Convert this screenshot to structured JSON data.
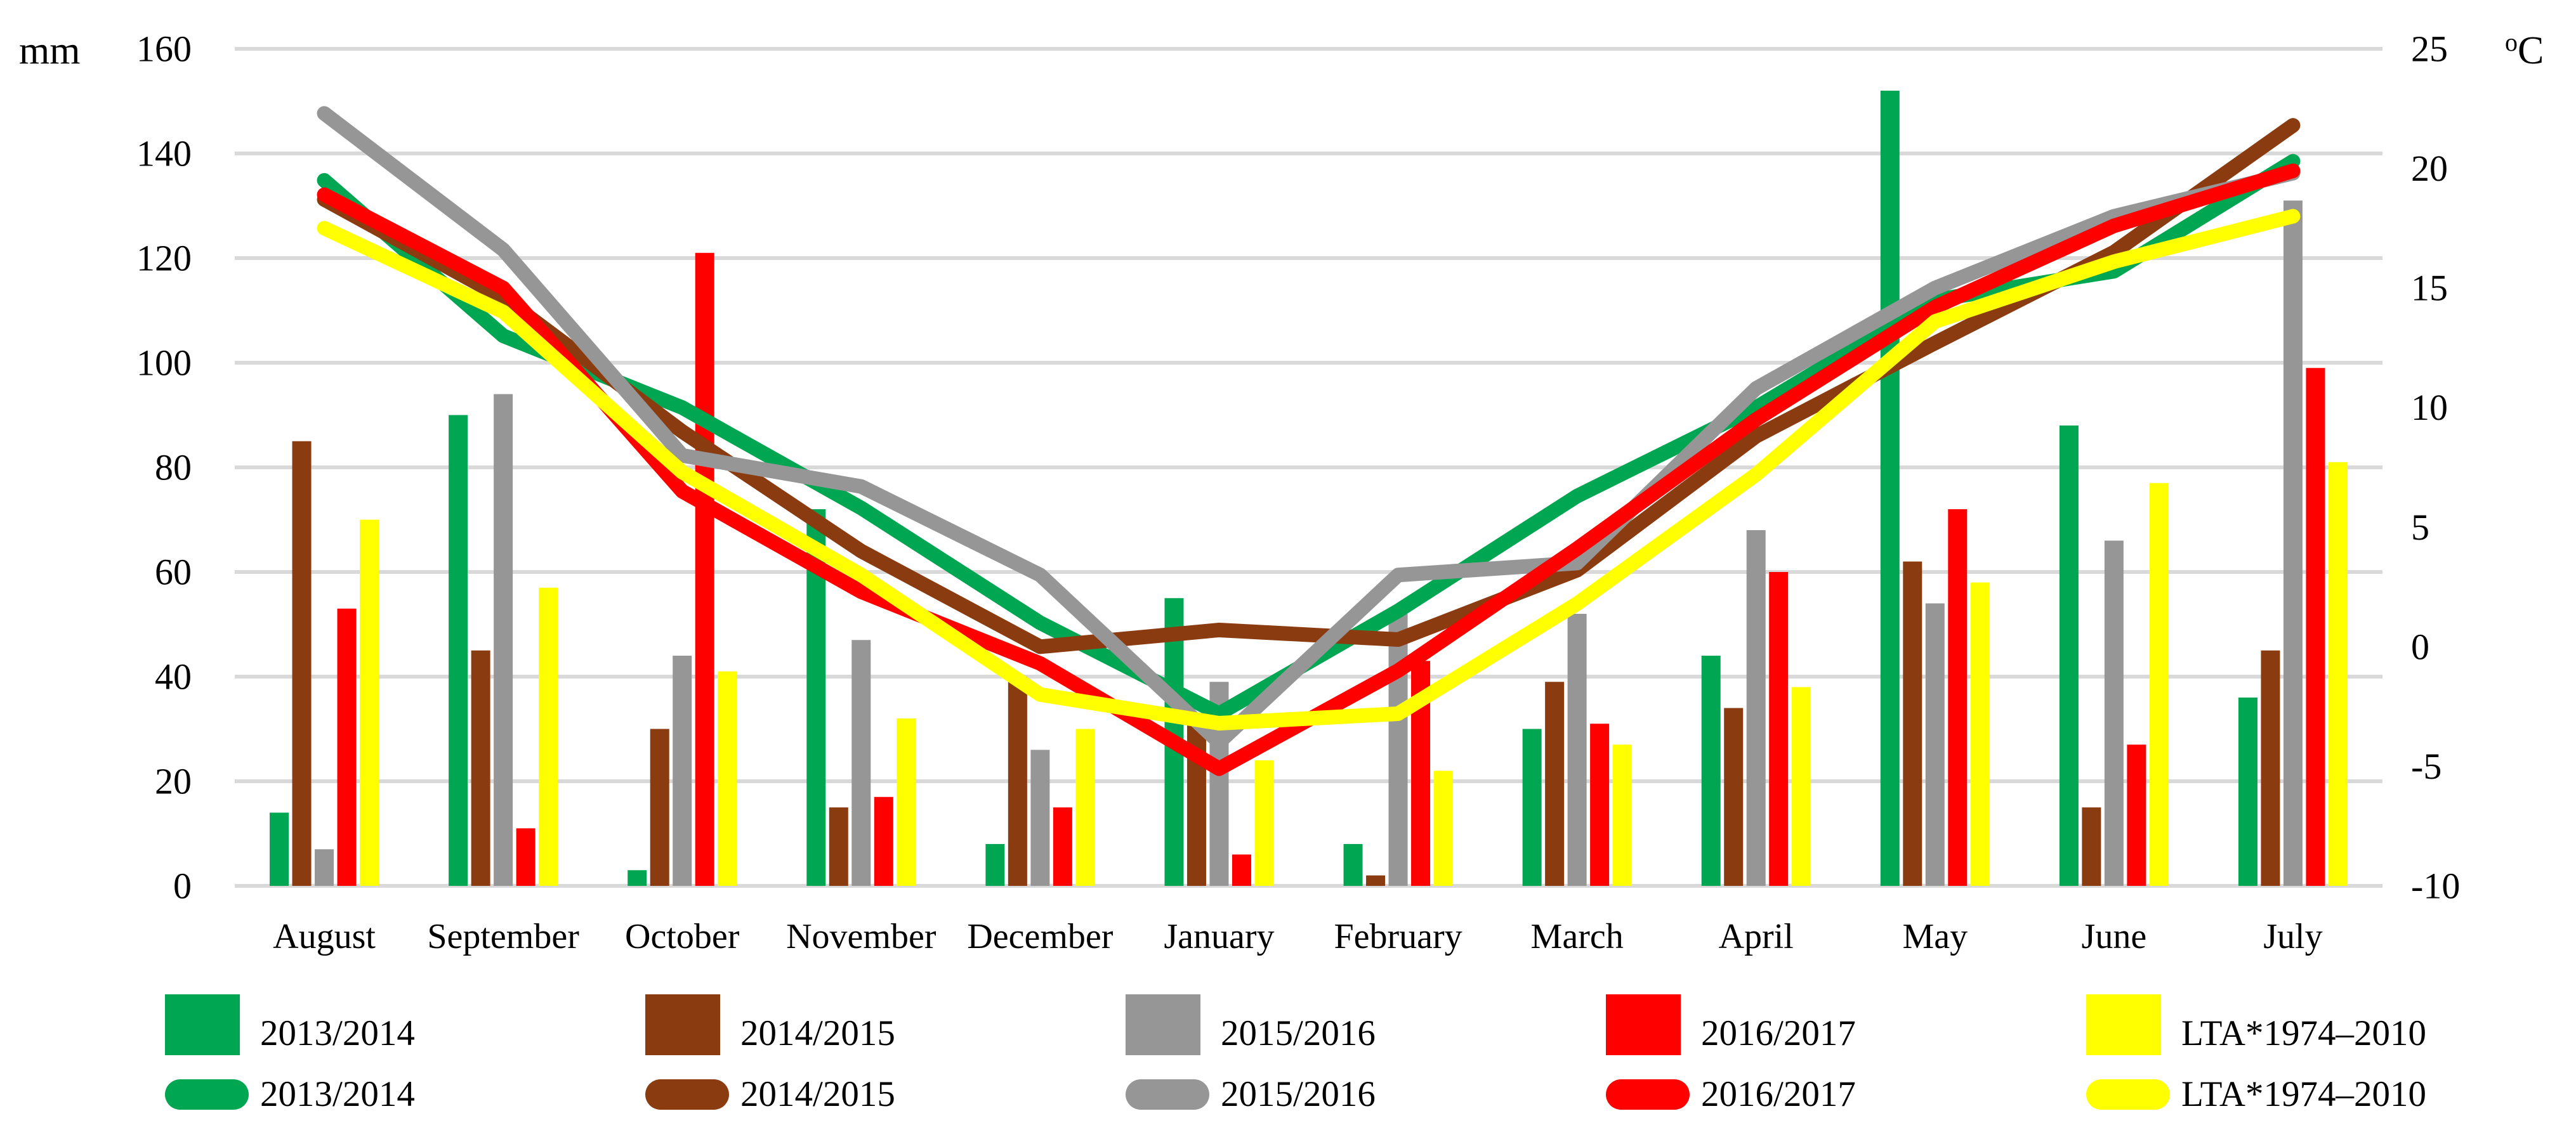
{
  "chart_data": {
    "type": "bar+line",
    "title": "",
    "categories": [
      "August",
      "September",
      "October",
      "November",
      "December",
      "January",
      "February",
      "March",
      "April",
      "May",
      "June",
      "July"
    ],
    "left_axis": {
      "label": "mm",
      "min": 0,
      "max": 160,
      "step": 20,
      "ticks": [
        "0",
        "20",
        "40",
        "60",
        "80",
        "100",
        "120",
        "140",
        "160"
      ]
    },
    "right_axis": {
      "label_sup": "o",
      "label_main": "C",
      "min": -10,
      "max": 25,
      "step": 5,
      "ticks": [
        "25",
        "20",
        "15",
        "10",
        "5",
        "0",
        "-5",
        "-10"
      ]
    },
    "grid": "horizontal",
    "legend_position": "bottom",
    "colors": {
      "green": "#00A651",
      "brown": "#8A3B10",
      "gray": "#969696",
      "red": "#FF0000",
      "yellow": "#FFFF00",
      "gridline": "#D9D9D9",
      "text": "#000000"
    },
    "bar_series": [
      {
        "name": "2013/2014",
        "color_key": "green",
        "values": [
          14,
          90,
          3,
          72,
          8,
          55,
          8,
          30,
          44,
          152,
          88,
          36
        ]
      },
      {
        "name": "2014/2015",
        "color_key": "brown",
        "values": [
          85,
          45,
          30,
          15,
          40,
          32,
          2,
          39,
          34,
          62,
          15,
          45
        ]
      },
      {
        "name": "2015/2016",
        "color_key": "gray",
        "values": [
          7,
          94,
          44,
          47,
          26,
          39,
          52,
          52,
          68,
          54,
          66,
          131
        ]
      },
      {
        "name": "2016/2017",
        "color_key": "red",
        "values": [
          53,
          11,
          121,
          17,
          15,
          6,
          43,
          31,
          60,
          72,
          27,
          99
        ]
      },
      {
        "name": "LTA*1974–2010",
        "color_key": "yellow",
        "values": [
          70,
          57,
          41,
          32,
          30,
          24,
          22,
          27,
          38,
          58,
          77,
          81
        ]
      }
    ],
    "line_series": [
      {
        "name": "2013/2014",
        "color_key": "green",
        "values": [
          19.5,
          13.0,
          10.0,
          5.8,
          1.0,
          -2.8,
          1.5,
          6.3,
          10.0,
          14.5,
          15.7,
          20.3
        ]
      },
      {
        "name": "2014/2015",
        "color_key": "brown",
        "values": [
          18.7,
          14.6,
          9.0,
          4.0,
          0.0,
          0.7,
          0.3,
          3.2,
          8.8,
          12.7,
          16.5,
          21.8
        ]
      },
      {
        "name": "2015/2016",
        "color_key": "gray",
        "values": [
          22.3,
          16.6,
          8.0,
          6.7,
          3.0,
          -4.0,
          3.0,
          3.5,
          10.8,
          15.0,
          18.0,
          19.8
        ]
      },
      {
        "name": "2016/2017",
        "color_key": "red",
        "values": [
          18.9,
          15.0,
          6.5,
          2.3,
          -0.7,
          -5.1,
          -1.0,
          4.1,
          9.5,
          14.2,
          17.6,
          19.9
        ]
      },
      {
        "name": "LTA*1974–2010",
        "color_key": "yellow",
        "values": [
          17.5,
          14.0,
          7.3,
          3.0,
          -2.0,
          -3.2,
          -2.8,
          1.8,
          7.2,
          13.6,
          16.1,
          18.0
        ]
      }
    ],
    "legend_rows": [
      {
        "swatch": "square",
        "entries": [
          "2013/2014",
          "2014/2015",
          "2015/2016",
          "2016/2017",
          "LTA*1974–2010"
        ]
      },
      {
        "swatch": "line",
        "entries": [
          "2013/2014",
          "2014/2015",
          "2015/2016",
          "2016/2017",
          "LTA*1974–2010"
        ]
      }
    ]
  }
}
